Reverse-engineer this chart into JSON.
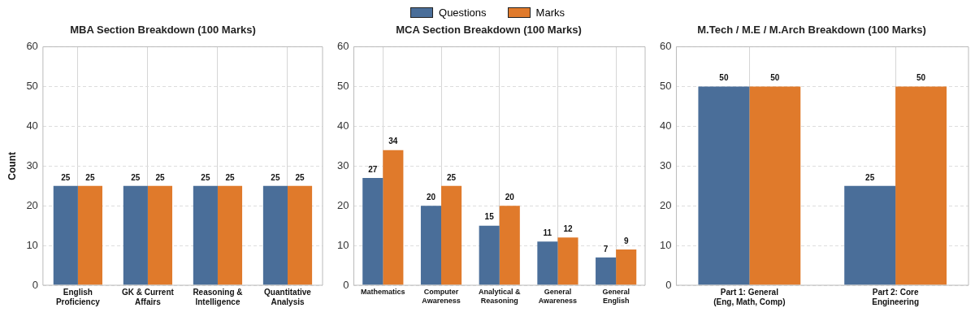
{
  "chart_data": [
    {
      "type": "bar",
      "title": "MBA Section Breakdown (100 Marks)",
      "ylabel": "Count",
      "categories": [
        "English\nProficiency",
        "GK & Current\nAffairs",
        "Reasoning &\nIntelligence",
        "Quantitative\nAnalysis"
      ],
      "series": [
        {
          "name": "Questions",
          "color": "#4a6e99",
          "values": [
            25,
            25,
            25,
            25
          ]
        },
        {
          "name": "Marks",
          "color": "#e07a2b",
          "values": [
            25,
            25,
            25,
            25
          ]
        }
      ],
      "ylim": [
        0,
        60
      ],
      "yticks": [
        0,
        10,
        20,
        30,
        40,
        50,
        60
      ],
      "grid": true,
      "legend": "top",
      "data_labels": true
    },
    {
      "type": "bar",
      "title": "MCA Section Breakdown (100 Marks)",
      "categories": [
        "Mathematics",
        "Computer\nAwareness",
        "Analytical &\nReasoning",
        "General\nAwareness",
        "General\nEnglish"
      ],
      "series": [
        {
          "name": "Questions",
          "color": "#4a6e99",
          "values": [
            27,
            20,
            15,
            11,
            7
          ]
        },
        {
          "name": "Marks",
          "color": "#e07a2b",
          "values": [
            34,
            25,
            20,
            12,
            9
          ]
        }
      ],
      "ylim": [
        0,
        60
      ],
      "yticks": [
        0,
        10,
        20,
        30,
        40,
        50,
        60
      ],
      "grid": true,
      "legend": "top",
      "data_labels": true
    },
    {
      "type": "bar",
      "title": "M.Tech / M.E / M.Arch Breakdown (100 Marks)",
      "categories": [
        "Part 1: General\n(Eng, Math, Comp)",
        "Part 2: Core\nEngineering"
      ],
      "series": [
        {
          "name": "Questions",
          "color": "#4a6e99",
          "values": [
            50,
            25
          ]
        },
        {
          "name": "Marks",
          "color": "#e07a2b",
          "values": [
            50,
            50
          ]
        }
      ],
      "ylim": [
        0,
        60
      ],
      "yticks": [
        0,
        10,
        20,
        30,
        40,
        50,
        60
      ],
      "grid": true,
      "legend": "top",
      "data_labels": true
    }
  ]
}
